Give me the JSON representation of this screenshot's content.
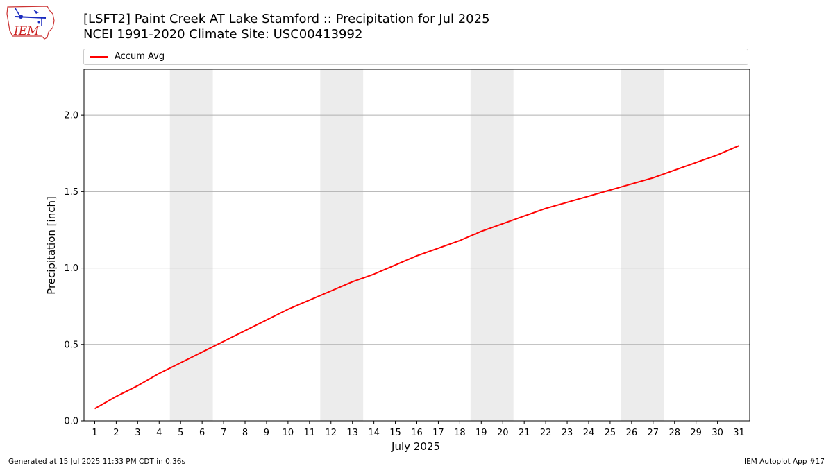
{
  "header": {
    "title_line1": "[LSFT2] Paint Creek  AT Lake Stamford :: Precipitation for Jul 2025",
    "title_line2": "NCEI 1991-2020 Climate Site: USC00413992"
  },
  "logo": {
    "text": "IEM"
  },
  "footer": {
    "generated": "Generated at 15 Jul 2025 11:33 PM CDT in 0.36s",
    "app": "IEM Autoplot App #17"
  },
  "colors": {
    "line": "#ff0000",
    "weekend_band": "#ececec",
    "grid": "#b0b0b0"
  },
  "chart_data": {
    "type": "line",
    "title": "[LSFT2] Paint Creek  AT Lake Stamford :: Precipitation for Jul 2025",
    "subtitle": "NCEI 1991-2020 Climate Site: USC00413992",
    "xlabel": "July 2025",
    "ylabel": "Precipitation [inch]",
    "x": [
      1,
      2,
      3,
      4,
      5,
      6,
      7,
      8,
      9,
      10,
      11,
      12,
      13,
      14,
      15,
      16,
      17,
      18,
      19,
      20,
      21,
      22,
      23,
      24,
      25,
      26,
      27,
      28,
      29,
      30,
      31
    ],
    "xlim": [
      0.5,
      31.5
    ],
    "ylim": [
      0,
      2.3
    ],
    "yticks": [
      0.0,
      0.5,
      1.0,
      1.5,
      2.0
    ],
    "ytick_labels": [
      "0.0",
      "0.5",
      "1.0",
      "1.5",
      "2.0"
    ],
    "grid": "horizontal",
    "legend_position": "top",
    "shaded_days": [
      [
        5,
        6
      ],
      [
        12,
        13
      ],
      [
        19,
        20
      ],
      [
        26,
        27
      ]
    ],
    "series": [
      {
        "name": "Accum Avg",
        "color": "#ff0000",
        "values": [
          0.08,
          0.16,
          0.23,
          0.31,
          0.38,
          0.45,
          0.52,
          0.59,
          0.66,
          0.73,
          0.79,
          0.85,
          0.91,
          0.96,
          1.02,
          1.08,
          1.13,
          1.18,
          1.24,
          1.29,
          1.34,
          1.39,
          1.43,
          1.47,
          1.51,
          1.55,
          1.59,
          1.64,
          1.69,
          1.74,
          1.8
        ]
      }
    ]
  }
}
